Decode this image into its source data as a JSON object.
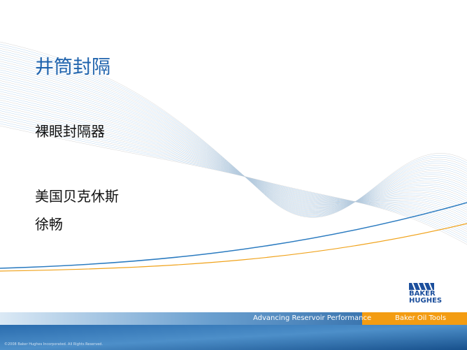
{
  "slide": {
    "title": "井筒封隔",
    "subtitle": "裸眼封隔器",
    "presenter": {
      "company": "美国贝克休斯",
      "name": "徐畅"
    }
  },
  "logo": {
    "line1": "BAKER",
    "line2": "HUGHES"
  },
  "footer": {
    "tagline": "Advancing Reservoir Performance",
    "division": "Baker Oil Tools",
    "copyright": "©2008 Baker Hughes Incorporated. All Rights Reserved."
  }
}
